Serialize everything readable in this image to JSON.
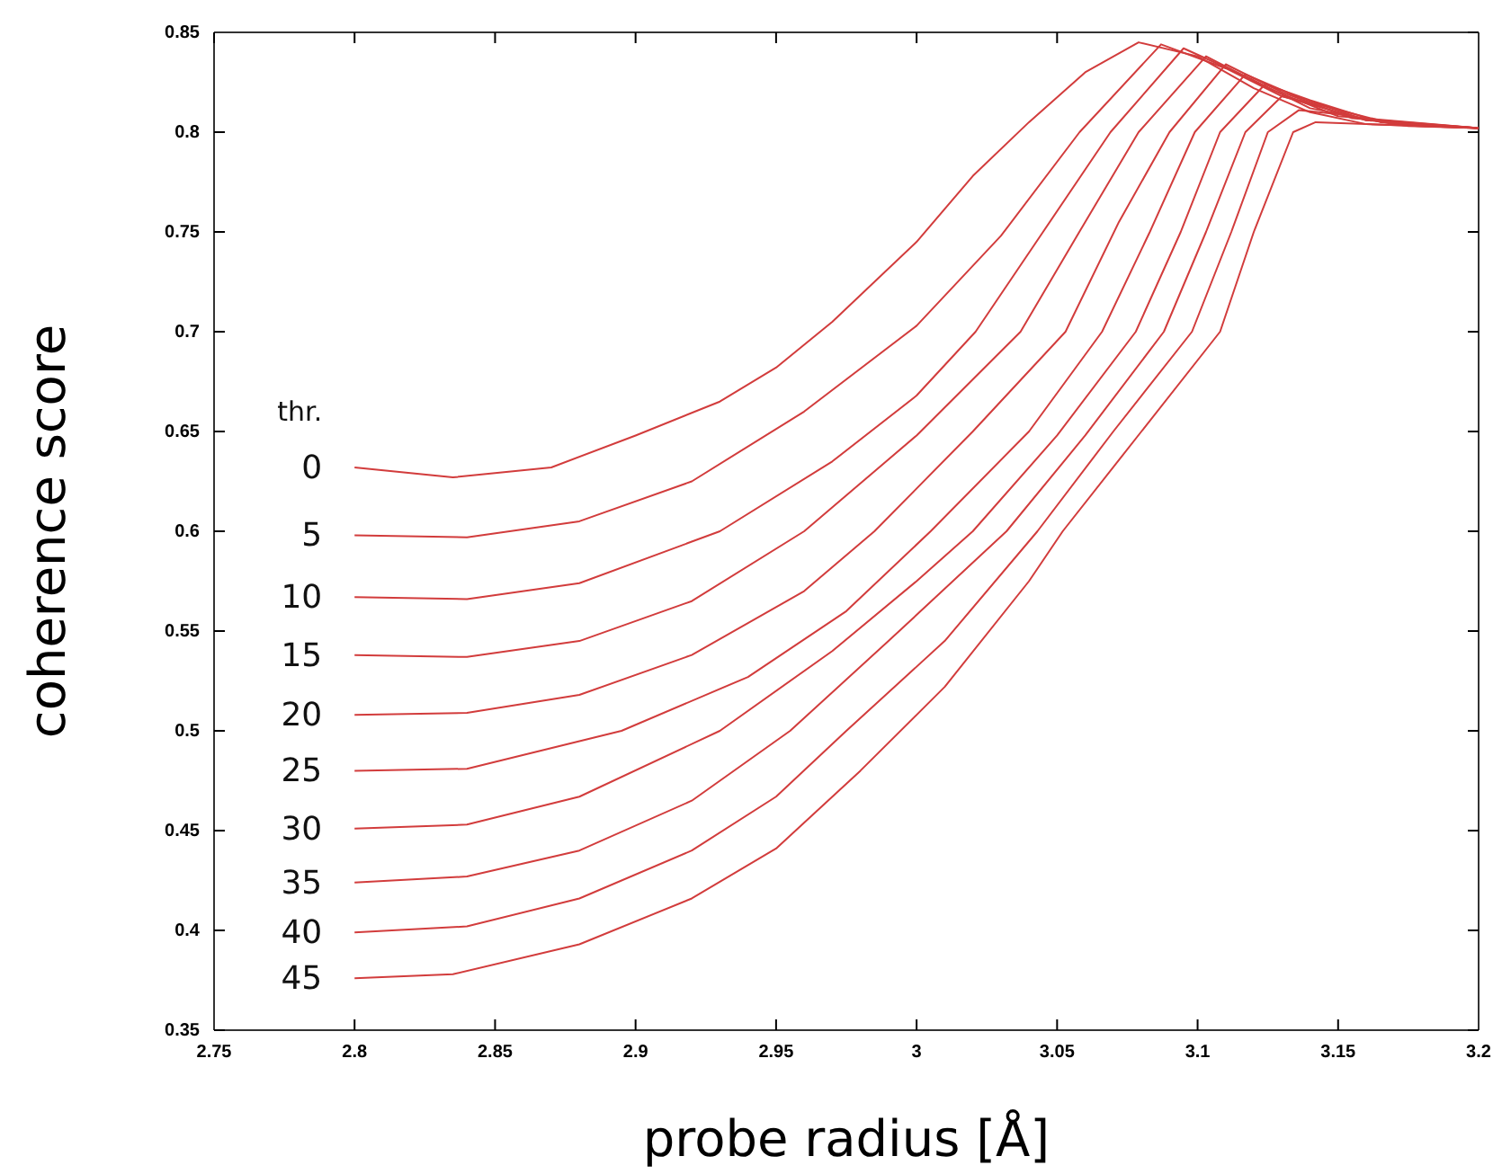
{
  "chart_data": {
    "type": "line",
    "xlabel": "probe radius [Å]",
    "ylabel": "coherence score",
    "legend_title": "thr.",
    "xlim": [
      2.75,
      3.2
    ],
    "ylim": [
      0.35,
      0.85
    ],
    "xticks": [
      2.75,
      2.8,
      2.85,
      2.9,
      2.95,
      3,
      3.05,
      3.1,
      3.15,
      3.2
    ],
    "yticks": [
      0.35,
      0.4,
      0.45,
      0.5,
      0.55,
      0.6,
      0.65,
      0.7,
      0.75,
      0.8,
      0.85
    ],
    "grid": false,
    "marker": "none",
    "line_style": "solid",
    "series": [
      {
        "name": "0",
        "color": "#d23c3c",
        "x": [
          2.8,
          2.835,
          2.87,
          2.9,
          2.93,
          2.95,
          2.97,
          3.0,
          3.02,
          3.04,
          3.06,
          3.079,
          3.1,
          3.12,
          3.14,
          3.16,
          3.2
        ],
        "values": [
          0.632,
          0.627,
          0.632,
          0.648,
          0.665,
          0.682,
          0.705,
          0.745,
          0.778,
          0.805,
          0.83,
          0.845,
          0.838,
          0.822,
          0.81,
          0.804,
          0.802
        ]
      },
      {
        "name": "5",
        "color": "#d23c3c",
        "x": [
          2.8,
          2.84,
          2.88,
          2.92,
          2.96,
          3.0,
          3.03,
          3.058,
          3.087,
          3.11,
          3.13,
          3.16,
          3.2
        ],
        "values": [
          0.598,
          0.597,
          0.605,
          0.625,
          0.66,
          0.703,
          0.748,
          0.8,
          0.844,
          0.832,
          0.818,
          0.806,
          0.802
        ]
      },
      {
        "name": "10",
        "color": "#d23c3c",
        "x": [
          2.8,
          2.84,
          2.88,
          2.93,
          2.97,
          3.0,
          3.021,
          3.045,
          3.069,
          3.095,
          3.12,
          3.14,
          3.17,
          3.2
        ],
        "values": [
          0.567,
          0.566,
          0.574,
          0.6,
          0.635,
          0.668,
          0.7,
          0.75,
          0.8,
          0.842,
          0.826,
          0.812,
          0.804,
          0.802
        ]
      },
      {
        "name": "15",
        "color": "#d23c3c",
        "x": [
          2.8,
          2.84,
          2.88,
          2.92,
          2.96,
          3.0,
          3.037,
          3.06,
          3.079,
          3.103,
          3.125,
          3.15,
          3.2
        ],
        "values": [
          0.538,
          0.537,
          0.545,
          0.565,
          0.6,
          0.648,
          0.7,
          0.755,
          0.8,
          0.838,
          0.822,
          0.808,
          0.802
        ]
      },
      {
        "name": "20",
        "color": "#d23c3c",
        "x": [
          2.8,
          2.84,
          2.88,
          2.92,
          2.96,
          2.985,
          3.02,
          3.053,
          3.072,
          3.09,
          3.11,
          3.13,
          3.155,
          3.2
        ],
        "values": [
          0.508,
          0.509,
          0.518,
          0.538,
          0.57,
          0.6,
          0.65,
          0.7,
          0.755,
          0.8,
          0.834,
          0.82,
          0.807,
          0.802
        ]
      },
      {
        "name": "25",
        "color": "#d23c3c",
        "x": [
          2.8,
          2.84,
          2.895,
          2.94,
          2.975,
          3.005,
          3.04,
          3.066,
          3.083,
          3.099,
          3.117,
          3.135,
          3.16,
          3.2
        ],
        "values": [
          0.48,
          0.481,
          0.5,
          0.527,
          0.56,
          0.6,
          0.65,
          0.7,
          0.75,
          0.8,
          0.829,
          0.818,
          0.806,
          0.802
        ]
      },
      {
        "name": "30",
        "color": "#d23c3c",
        "x": [
          2.8,
          2.84,
          2.88,
          2.93,
          2.97,
          3.0,
          3.02,
          3.05,
          3.078,
          3.094,
          3.108,
          3.124,
          3.14,
          3.165,
          3.2
        ],
        "values": [
          0.451,
          0.453,
          0.467,
          0.5,
          0.54,
          0.575,
          0.6,
          0.648,
          0.7,
          0.75,
          0.8,
          0.824,
          0.816,
          0.805,
          0.802
        ]
      },
      {
        "name": "35",
        "color": "#d23c3c",
        "x": [
          2.8,
          2.84,
          2.88,
          2.92,
          2.955,
          2.99,
          3.032,
          3.06,
          3.088,
          3.103,
          3.117,
          3.13,
          3.145,
          3.17,
          3.2
        ],
        "values": [
          0.424,
          0.427,
          0.44,
          0.465,
          0.5,
          0.545,
          0.6,
          0.648,
          0.7,
          0.75,
          0.8,
          0.818,
          0.813,
          0.804,
          0.802
        ]
      },
      {
        "name": "40",
        "color": "#d23c3c",
        "x": [
          2.8,
          2.84,
          2.88,
          2.92,
          2.95,
          2.975,
          3.01,
          3.043,
          3.07,
          3.098,
          3.112,
          3.125,
          3.136,
          3.15,
          3.175,
          3.2
        ],
        "values": [
          0.399,
          0.402,
          0.416,
          0.44,
          0.467,
          0.5,
          0.545,
          0.6,
          0.65,
          0.7,
          0.75,
          0.8,
          0.811,
          0.809,
          0.803,
          0.802
        ]
      },
      {
        "name": "45",
        "color": "#d23c3c",
        "x": [
          2.8,
          2.835,
          2.88,
          2.92,
          2.95,
          2.98,
          3.01,
          3.04,
          3.052,
          3.08,
          3.108,
          3.12,
          3.134,
          3.142,
          3.16,
          3.2
        ],
        "values": [
          0.376,
          0.378,
          0.393,
          0.416,
          0.441,
          0.48,
          0.522,
          0.575,
          0.6,
          0.65,
          0.7,
          0.75,
          0.8,
          0.805,
          0.804,
          0.802
        ]
      }
    ]
  }
}
